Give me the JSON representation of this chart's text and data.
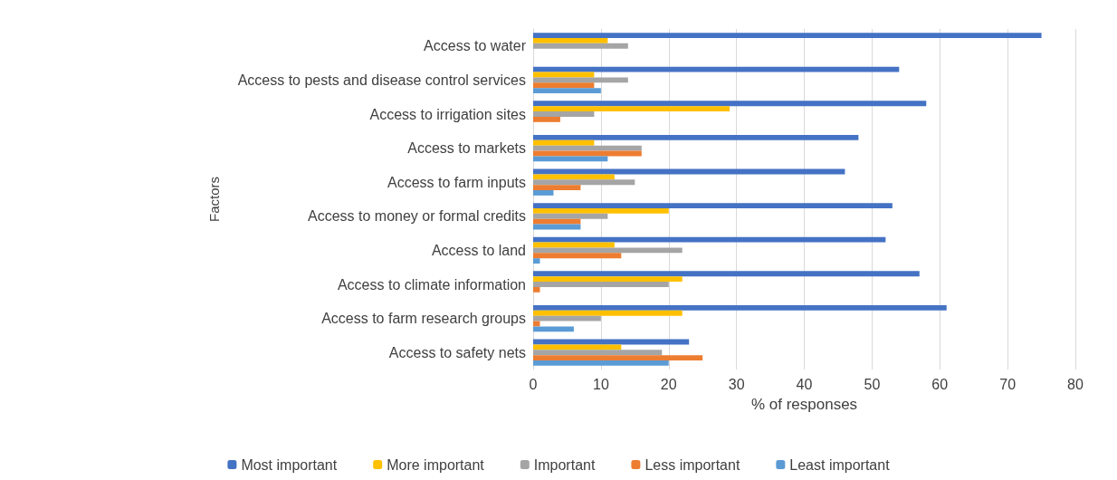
{
  "chart_data": {
    "type": "bar",
    "orientation": "horizontal",
    "xlabel": "% of responses",
    "ylabel": "Factors",
    "categories": [
      "Access to water",
      "Access to pests and disease control services",
      "Access to irrigation sites",
      "Access to markets",
      "Access to farm inputs",
      "Access to money or formal credits",
      "Access to land",
      "Access to climate information",
      "Access to farm research groups",
      "Access to safety nets"
    ],
    "series": [
      {
        "name": "Most important",
        "color": "#4472c4",
        "values": [
          75,
          54,
          58,
          48,
          46,
          53,
          52,
          57,
          61,
          23
        ]
      },
      {
        "name": "More important",
        "color": "#ffc000",
        "values": [
          11,
          9,
          29,
          9,
          12,
          20,
          12,
          22,
          22,
          13
        ]
      },
      {
        "name": "Important",
        "color": "#a5a5a5",
        "values": [
          14,
          14,
          9,
          16,
          15,
          11,
          22,
          20,
          10,
          19
        ]
      },
      {
        "name": "Less important",
        "color": "#ed7d31",
        "values": [
          null,
          9,
          4,
          16,
          7,
          7,
          13,
          1,
          1,
          25
        ]
      },
      {
        "name": "Least important",
        "color": "#5b9bd5",
        "values": [
          null,
          10,
          null,
          11,
          3,
          7,
          1,
          null,
          6,
          20
        ]
      }
    ],
    "xlim": [
      0,
      80
    ],
    "xticks": [
      0,
      10,
      20,
      30,
      40,
      50,
      60,
      70,
      80
    ],
    "grid": "x",
    "legend": "bottom"
  }
}
